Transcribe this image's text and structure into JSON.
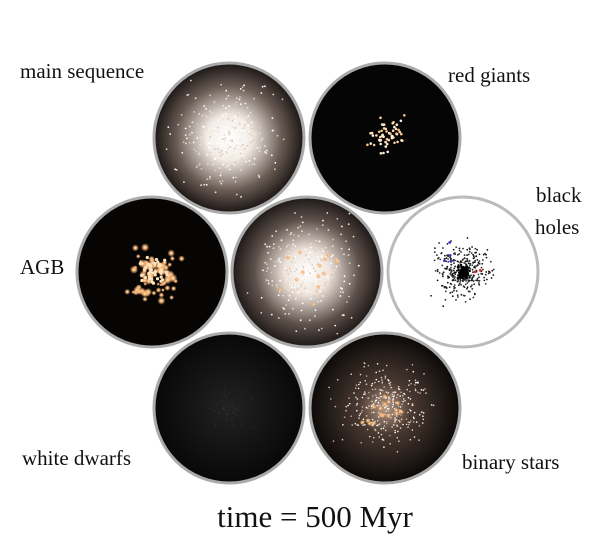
{
  "panels": {
    "main_sequence": "main sequence",
    "red_giants": "red giants",
    "black_holes": [
      "black",
      "holes"
    ],
    "agb": "AGB",
    "white_dwarfs": "white dwarfs",
    "binary_stars": "binary stars"
  },
  "caption": "time = 500 Myr"
}
